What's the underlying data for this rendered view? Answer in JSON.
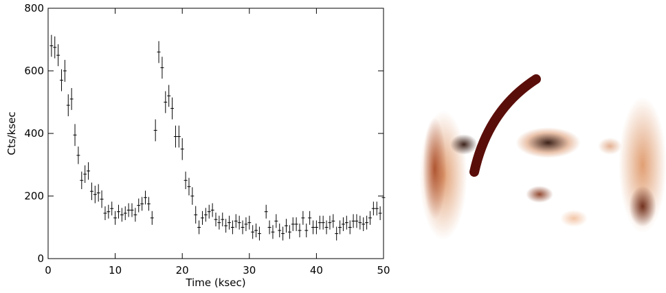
{
  "chart_data": {
    "type": "errorbar",
    "xlabel": "Time (ksec)",
    "ylabel": "Cts/ksec",
    "x": [
      0.5,
      1,
      1.5,
      2,
      2.5,
      3,
      3.5,
      4,
      4.5,
      5,
      5.5,
      6,
      6.5,
      7,
      7.5,
      8,
      8.5,
      9,
      9.5,
      10,
      10.5,
      11,
      11.5,
      12,
      12.5,
      13,
      13.5,
      14,
      14.5,
      15,
      15.5,
      16,
      16.5,
      17,
      17.5,
      18,
      18.5,
      19,
      19.5,
      20,
      20.5,
      21,
      21.5,
      22,
      22.5,
      23,
      23.5,
      24,
      24.5,
      25,
      25.5,
      26,
      26.5,
      27,
      27.5,
      28,
      28.5,
      29,
      29.5,
      30,
      30.5,
      31,
      31.5,
      32.5,
      33,
      33.5,
      34,
      34.5,
      35,
      35.5,
      36,
      36.5,
      37,
      37.5,
      38,
      38.5,
      39,
      39.5,
      40,
      40.5,
      41,
      41.5,
      42,
      42.5,
      43,
      43.5,
      44,
      44.5,
      45,
      45.5,
      46,
      46.5,
      47,
      47.5,
      48,
      48.5,
      49,
      49.5,
      50
    ],
    "values": [
      680,
      675,
      650,
      570,
      600,
      490,
      510,
      395,
      330,
      250,
      270,
      280,
      215,
      205,
      210,
      190,
      145,
      150,
      160,
      130,
      150,
      140,
      145,
      155,
      155,
      140,
      170,
      175,
      195,
      175,
      130,
      410,
      660,
      610,
      500,
      520,
      480,
      390,
      390,
      350,
      250,
      230,
      200,
      140,
      100,
      130,
      140,
      150,
      155,
      125,
      115,
      125,
      105,
      115,
      100,
      120,
      115,
      100,
      110,
      115,
      85,
      90,
      80,
      150,
      100,
      85,
      120,
      90,
      80,
      105,
      85,
      110,
      110,
      90,
      130,
      90,
      130,
      100,
      100,
      115,
      115,
      100,
      115,
      120,
      80,
      100,
      110,
      115,
      100,
      120,
      120,
      115,
      110,
      115,
      130,
      160,
      160,
      145,
      195
    ],
    "errors": [
      35,
      35,
      35,
      35,
      35,
      35,
      35,
      35,
      28,
      28,
      28,
      28,
      28,
      28,
      28,
      28,
      22,
      22,
      22,
      22,
      22,
      22,
      22,
      22,
      22,
      22,
      22,
      22,
      22,
      22,
      22,
      35,
      35,
      35,
      35,
      35,
      35,
      35,
      35,
      35,
      28,
      28,
      28,
      28,
      22,
      22,
      22,
      22,
      22,
      22,
      22,
      22,
      22,
      22,
      22,
      22,
      22,
      22,
      22,
      22,
      22,
      22,
      22,
      22,
      22,
      22,
      22,
      22,
      22,
      22,
      22,
      22,
      22,
      22,
      22,
      22,
      22,
      22,
      22,
      22,
      22,
      22,
      22,
      22,
      22,
      22,
      22,
      22,
      22,
      22,
      22,
      22,
      22,
      22,
      22,
      22,
      22,
      22,
      22
    ],
    "color": "#000000",
    "xlim": [
      0,
      50
    ],
    "ylim": [
      0,
      800
    ],
    "xticks": [
      0,
      10,
      20,
      30,
      40,
      50
    ],
    "yticks": [
      0,
      200,
      400,
      600,
      800
    ]
  }
}
